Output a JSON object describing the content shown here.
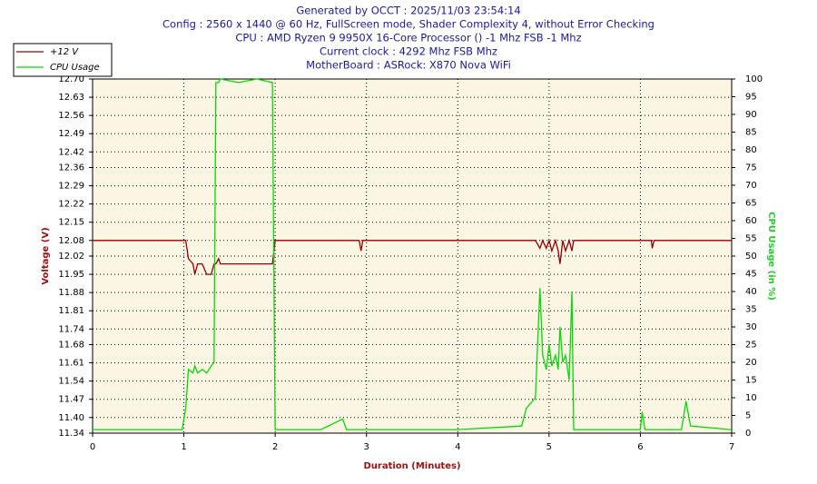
{
  "chart_data": {
    "type": "line",
    "title_lines": [
      "Generated by OCCT : 2025/11/03 23:54:14",
      "Config : 2560 x 1440 @ 60 Hz, FullScreen mode, Shader Complexity 4, without Error Checking",
      "CPU : AMD Ryzen 9 9950X 16-Core Processor () -1 Mhz FSB -1 Mhz",
      "Current clock : 4292 Mhz FSB  Mhz",
      "MotherBoard : ASRock: X870 Nova WiFi"
    ],
    "x_label": "Duration (Minutes)",
    "y_label": "Voltage (V)",
    "y2_label": "CPU Usage (in %)",
    "x": [
      0,
      0.5,
      0.98,
      1.02,
      1.05,
      1.1,
      1.12,
      1.15,
      1.2,
      1.25,
      1.3,
      1.33,
      1.35,
      1.38,
      1.4,
      1.6,
      1.8,
      1.97,
      2.0,
      2.5,
      2.74,
      2.78,
      2.92,
      2.94,
      2.96,
      4.0,
      4.7,
      4.75,
      4.85,
      4.9,
      4.93,
      4.97,
      5.0,
      5.03,
      5.07,
      5.1,
      5.12,
      5.15,
      5.18,
      5.22,
      5.25,
      5.27,
      6.0,
      6.02,
      6.05,
      6.12,
      6.13,
      6.15,
      6.45,
      6.5,
      6.55,
      7.0
    ],
    "series": [
      {
        "name": "+12 V",
        "color": "#990000",
        "axis": "y",
        "values": [
          12.08,
          12.08,
          12.08,
          12.08,
          12.01,
          11.99,
          11.95,
          11.99,
          11.99,
          11.95,
          11.95,
          11.99,
          11.99,
          12.01,
          11.99,
          11.99,
          11.99,
          11.99,
          12.08,
          12.08,
          12.08,
          12.08,
          12.08,
          12.04,
          12.08,
          12.08,
          12.08,
          12.08,
          12.08,
          12.05,
          12.08,
          12.05,
          12.08,
          12.04,
          12.08,
          12.04,
          11.99,
          12.08,
          12.04,
          12.08,
          12.04,
          12.08,
          12.08,
          12.08,
          12.08,
          12.08,
          12.05,
          12.08,
          12.08,
          12.08,
          12.08,
          12.08
        ]
      },
      {
        "name": "CPU Usage",
        "color": "#00dd00",
        "axis": "y2",
        "values": [
          1,
          1,
          1,
          7,
          18,
          17,
          19,
          17,
          18,
          17,
          19,
          20,
          99,
          99,
          100,
          99,
          100,
          99,
          1,
          1,
          4,
          1,
          1,
          1,
          1,
          1,
          2,
          7,
          10,
          41,
          22,
          18,
          25,
          19,
          22,
          18,
          30,
          20,
          22,
          15,
          40,
          1,
          1,
          6,
          1,
          1,
          1,
          1,
          1,
          9,
          2,
          1
        ]
      }
    ],
    "xlim": [
      0,
      7
    ],
    "xticks": [
      0,
      1,
      2,
      3,
      4,
      5,
      6,
      7
    ],
    "ylim": [
      11.34,
      12.7
    ],
    "yticks": [
      11.34,
      {
        "value": 11.4,
        "label": "11.40"
      },
      11.47,
      11.54,
      11.61,
      11.68,
      11.74,
      11.81,
      11.88,
      11.95,
      12.02,
      12.08,
      12.15,
      12.22,
      12.29,
      12.36,
      12.42,
      12.49,
      12.56,
      12.63,
      {
        "value": 12.7,
        "label": "12.70"
      }
    ],
    "y2lim": [
      0,
      100
    ],
    "y2ticks": [
      0,
      5,
      10,
      15,
      20,
      25,
      30,
      35,
      40,
      45,
      50,
      55,
      60,
      65,
      70,
      75,
      80,
      85,
      90,
      95,
      100
    ],
    "grid": true,
    "legend": "top-left",
    "background": "#fbf5e4"
  }
}
